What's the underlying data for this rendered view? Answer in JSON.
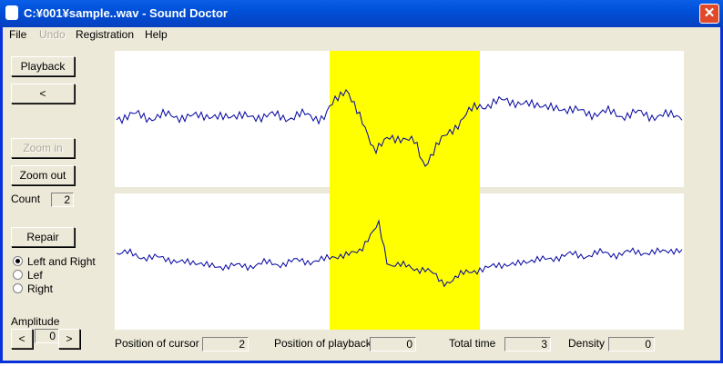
{
  "window": {
    "title": "C:¥001¥sample..wav - Sound Doctor"
  },
  "menu": [
    "File",
    "Undo",
    "Registration",
    "Help"
  ],
  "buttons": {
    "playback": "Playback",
    "back": "<",
    "zoom_in": "Zoom in",
    "zoom_out": "Zoom out",
    "repair": "Repair",
    "amp_down": "<",
    "amp_up": ">"
  },
  "count": {
    "label": "Count",
    "value": 2
  },
  "channels": [
    "Left and Right",
    "Lef",
    "Right"
  ],
  "amplitude": {
    "label": "Amplitude",
    "value": 0
  },
  "status": [
    {
      "label": "Position of cursor",
      "value": 2
    },
    {
      "label": "Position of playback",
      "value": 0
    },
    {
      "label": "Total time",
      "value": 3
    },
    {
      "label": "Density",
      "value": 0
    }
  ]
}
